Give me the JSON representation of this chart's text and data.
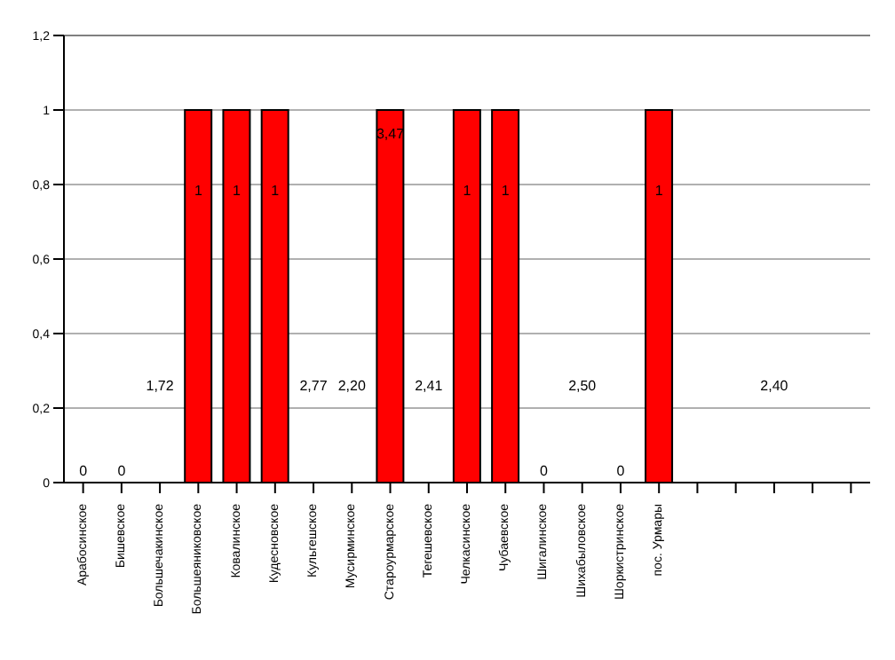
{
  "chart_data": {
    "type": "bar",
    "categories": [
      "Арабосинское",
      "Бишевское",
      "Большечакинское",
      "Большеяниковское",
      "Ковалинское",
      "Кудесновское",
      "Кульгешское",
      "Мусирминское",
      "Староурмарское",
      "Тегешевское",
      "Челкасинское",
      "Чубаевское",
      "Шигалинское",
      "Шихабыловское",
      "Шоркистринское",
      "пос. Урмары",
      null,
      null,
      null,
      null,
      null
    ],
    "values": [
      0,
      0,
      0,
      1,
      1,
      1,
      0,
      0,
      1,
      0,
      1,
      1,
      0,
      0,
      0,
      1,
      0,
      0,
      0,
      0,
      0
    ],
    "value_labels": [
      "0",
      "0",
      null,
      "1",
      "1",
      "1",
      null,
      null,
      null,
      null,
      "1",
      "1",
      "0",
      null,
      "0",
      "1",
      null,
      null,
      null,
      null,
      null
    ],
    "annotations": [
      "1,72",
      "2,77",
      "2,20",
      "3,47",
      "2,41",
      "2,50",
      "2,40"
    ],
    "color": "#ff0000",
    "ylim": [
      0,
      1.2
    ],
    "yticks": [
      0,
      {
        "value": 0.2,
        "label": "0,2"
      },
      {
        "value": 0.4,
        "label": "0,4"
      },
      {
        "value": 0.6,
        "label": "0,6"
      },
      {
        "value": 0.8,
        "label": "0,8"
      },
      1,
      {
        "value": 1.2,
        "label": "1,2"
      }
    ],
    "grid": "y"
  }
}
